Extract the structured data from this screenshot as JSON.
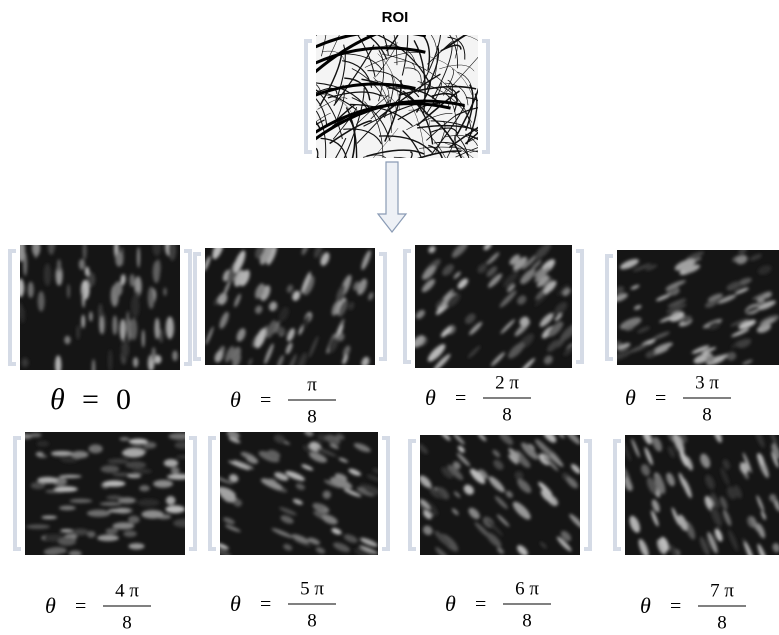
{
  "roi": {
    "title": "ROI"
  },
  "panels": [
    {
      "label": {
        "symbol": "θ",
        "equals": "=",
        "value": "0"
      }
    },
    {
      "label": {
        "symbol": "θ",
        "equals": "=",
        "numerator": "π",
        "denominator": "8"
      }
    },
    {
      "label": {
        "symbol": "θ",
        "equals": "=",
        "numerator": "2 π",
        "denominator": "8"
      }
    },
    {
      "label": {
        "symbol": "θ",
        "equals": "=",
        "numerator": "3 π",
        "denominator": "8"
      }
    },
    {
      "label": {
        "symbol": "θ",
        "equals": "=",
        "numerator": "4 π",
        "denominator": "8"
      }
    },
    {
      "label": {
        "symbol": "θ",
        "equals": "=",
        "numerator": "5 π",
        "denominator": "8"
      }
    },
    {
      "label": {
        "symbol": "θ",
        "equals": "=",
        "numerator": "6 π",
        "denominator": "8"
      }
    },
    {
      "label": {
        "symbol": "θ",
        "equals": "=",
        "numerator": "7 π",
        "denominator": "8"
      }
    }
  ]
}
